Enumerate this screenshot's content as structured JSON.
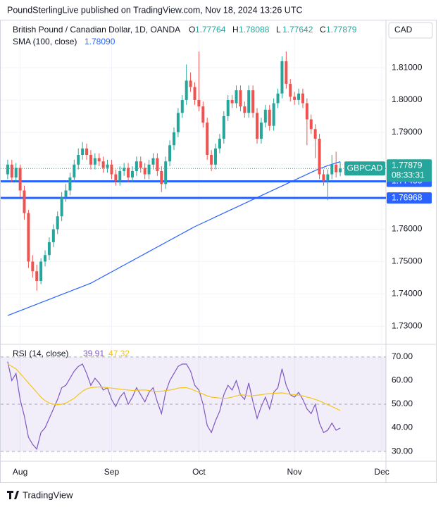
{
  "header": "PoundSterlingLive published on TradingView.com, Nov 18, 2024 13:26 UTC",
  "footer": "TradingView",
  "chart_data": [
    {
      "type": "candlestick",
      "title": "British Pound / Canadian Dollar, 1D, OANDA",
      "ohlc_labels": [
        "O",
        "H",
        "L",
        "C"
      ],
      "currency": "CAD",
      "symbol": "GBPCAD",
      "countdown": "08:33:31",
      "up_color": "#26a69a",
      "down_color": "#ef5350",
      "open": [
        1.777,
        1.78,
        1.776,
        1.779,
        1.772,
        1.765,
        1.75,
        1.747,
        1.744,
        1.75,
        1.752,
        1.756,
        1.76,
        1.764,
        1.77,
        1.772,
        1.776,
        1.78,
        1.783,
        1.785,
        1.783,
        1.78,
        1.782,
        1.781,
        1.779,
        1.78,
        1.777,
        1.775,
        1.778,
        1.779,
        1.776,
        1.778,
        1.781,
        1.779,
        1.777,
        1.78,
        1.782,
        1.778,
        1.774,
        1.781,
        1.786,
        1.79,
        1.796,
        1.8,
        1.806,
        1.804,
        1.8,
        1.798,
        1.793,
        1.783,
        1.78,
        1.785,
        1.788,
        1.795,
        1.8,
        1.799,
        1.803,
        1.798,
        1.796,
        1.803,
        1.796,
        1.788,
        1.793,
        1.797,
        1.792,
        1.799,
        1.802,
        1.812,
        1.805,
        1.801,
        1.8,
        1.802,
        1.799,
        1.794,
        1.791,
        1.788,
        1.777,
        1.775,
        1.777,
        1.78,
        1.77764
      ],
      "high": [
        1.7815,
        1.7815,
        1.7805,
        1.78,
        1.7735,
        1.766,
        1.752,
        1.749,
        1.751,
        1.7535,
        1.7575,
        1.7615,
        1.7655,
        1.7715,
        1.774,
        1.7775,
        1.7815,
        1.785,
        1.787,
        1.7865,
        1.7845,
        1.7835,
        1.7835,
        1.7825,
        1.7815,
        1.7815,
        1.7785,
        1.7795,
        1.7805,
        1.7805,
        1.7795,
        1.7825,
        1.7825,
        1.7805,
        1.7815,
        1.7835,
        1.7835,
        1.7795,
        1.7825,
        1.7875,
        1.7915,
        1.7975,
        1.8015,
        1.811,
        1.8085,
        1.8055,
        1.815,
        1.7995,
        1.7945,
        1.7845,
        1.7865,
        1.7895,
        1.7965,
        1.8015,
        1.8015,
        1.8045,
        1.8045,
        1.7995,
        1.8045,
        1.8045,
        1.7975,
        1.7945,
        1.7985,
        1.7985,
        1.8005,
        1.8035,
        1.8135,
        1.815,
        1.8065,
        1.8025,
        1.8035,
        1.8035,
        1.8005,
        1.7955,
        1.7925,
        1.7895,
        1.7785,
        1.7785,
        1.783,
        1.784,
        1.78088
      ],
      "low": [
        1.7755,
        1.7745,
        1.7745,
        1.77,
        1.763,
        1.748,
        1.745,
        1.741,
        1.743,
        1.7485,
        1.7505,
        1.7545,
        1.7585,
        1.7625,
        1.7685,
        1.7705,
        1.7745,
        1.7785,
        1.7815,
        1.7815,
        1.7785,
        1.7785,
        1.7795,
        1.7775,
        1.7775,
        1.7755,
        1.7735,
        1.7735,
        1.7765,
        1.7745,
        1.7745,
        1.7765,
        1.7775,
        1.7755,
        1.7755,
        1.7785,
        1.7765,
        1.7715,
        1.7725,
        1.7795,
        1.7845,
        1.7885,
        1.7945,
        1.7985,
        1.8025,
        1.7985,
        1.7965,
        1.7915,
        1.7815,
        1.778,
        1.7785,
        1.7835,
        1.7865,
        1.7935,
        1.7975,
        1.7975,
        1.7965,
        1.7945,
        1.7945,
        1.7945,
        1.7865,
        1.7865,
        1.7915,
        1.7905,
        1.7905,
        1.7975,
        1.8005,
        1.8035,
        1.7995,
        1.7985,
        1.7985,
        1.7975,
        1.786,
        1.7895,
        1.782,
        1.7755,
        1.7735,
        1.769,
        1.7755,
        1.776,
        1.77642
      ],
      "close": [
        1.78,
        1.776,
        1.779,
        1.772,
        1.765,
        1.75,
        1.747,
        1.744,
        1.75,
        1.752,
        1.756,
        1.76,
        1.764,
        1.77,
        1.772,
        1.776,
        1.78,
        1.783,
        1.785,
        1.783,
        1.78,
        1.782,
        1.781,
        1.779,
        1.78,
        1.777,
        1.775,
        1.778,
        1.779,
        1.776,
        1.778,
        1.781,
        1.779,
        1.777,
        1.78,
        1.782,
        1.778,
        1.774,
        1.781,
        1.786,
        1.79,
        1.796,
        1.8,
        1.806,
        1.804,
        1.8,
        1.798,
        1.793,
        1.783,
        1.78,
        1.785,
        1.788,
        1.795,
        1.8,
        1.799,
        1.803,
        1.798,
        1.796,
        1.803,
        1.796,
        1.788,
        1.793,
        1.797,
        1.792,
        1.799,
        1.802,
        1.812,
        1.805,
        1.801,
        1.8,
        1.802,
        1.799,
        1.794,
        1.791,
        1.788,
        1.777,
        1.775,
        1.777,
        1.78,
        1.77764,
        1.77879
      ],
      "sma": {
        "name": "SMA (100, close)",
        "color": "#2962ff",
        "current": {
          "value": 1.7809,
          "label": "1.78090"
        },
        "values": [
          1.7333,
          1.7338,
          1.7343,
          1.7348,
          1.7353,
          1.7358,
          1.7363,
          1.7368,
          1.7373,
          1.7378,
          1.7383,
          1.7388,
          1.7393,
          1.7398,
          1.7403,
          1.7408,
          1.7413,
          1.7418,
          1.7423,
          1.7428,
          1.7433,
          1.744,
          1.7447,
          1.7454,
          1.7461,
          1.7468,
          1.7475,
          1.7482,
          1.7489,
          1.7496,
          1.7503,
          1.751,
          1.7517,
          1.7524,
          1.7531,
          1.7538,
          1.7545,
          1.7552,
          1.7559,
          1.7566,
          1.7573,
          1.758,
          1.7587,
          1.7594,
          1.7601,
          1.7608,
          1.7614,
          1.762,
          1.7626,
          1.7632,
          1.7638,
          1.7644,
          1.765,
          1.7656,
          1.7662,
          1.7668,
          1.7674,
          1.768,
          1.7686,
          1.7692,
          1.7698,
          1.7704,
          1.771,
          1.7716,
          1.7722,
          1.7728,
          1.7734,
          1.774,
          1.7746,
          1.7752,
          1.7758,
          1.7764,
          1.777,
          1.7776,
          1.7782,
          1.7787,
          1.7792,
          1.7797,
          1.7801,
          1.7805,
          1.7809
        ]
      },
      "levels": [
        {
          "value": 1.77483,
          "color": "#2962ff"
        },
        {
          "value": 1.76968,
          "color": "#2962ff"
        }
      ],
      "xlim": [
        -1,
        91
      ],
      "ylim": [
        1.7246,
        1.8244
      ],
      "yticks": [
        {
          "value": 1.73,
          "label": "1.73000"
        },
        {
          "value": 1.74,
          "label": "1.74000"
        },
        {
          "value": 1.75,
          "label": "1.75000"
        },
        {
          "value": 1.76,
          "label": "1.76000"
        },
        {
          "value": 1.77,
          "label": "1.77000"
        },
        {
          "value": 1.78,
          "label": "1.78000"
        },
        {
          "value": 1.79,
          "label": "1.79000"
        },
        {
          "value": 1.8,
          "label": "1.80000"
        },
        {
          "value": 1.81,
          "label": "1.81000"
        }
      ],
      "xticks": [
        {
          "value": 3,
          "label": "Aug"
        },
        {
          "value": 25,
          "label": "Sep"
        },
        {
          "value": 46,
          "label": "Oct"
        },
        {
          "value": 69,
          "label": "Nov"
        },
        {
          "value": 90,
          "label": "Dec"
        }
      ]
    },
    {
      "type": "line",
      "title": "RSI (14, close)",
      "series": [
        {
          "color": "#7e57c2",
          "values": [
            68,
            60,
            63,
            52,
            45,
            36,
            33,
            31,
            38,
            40,
            44,
            48,
            52,
            57,
            58,
            61,
            64,
            66,
            67,
            63,
            58,
            61,
            59,
            56,
            57,
            52,
            49,
            53,
            55,
            50,
            53,
            57,
            54,
            51,
            55,
            57,
            51,
            46,
            55,
            60,
            63,
            66,
            67,
            67,
            64,
            58,
            56,
            50,
            41,
            38,
            43,
            47,
            54,
            58,
            56,
            60,
            54,
            52,
            59,
            51,
            44,
            49,
            53,
            48,
            55,
            57,
            65,
            58,
            54,
            53,
            55,
            52,
            48,
            46,
            50,
            42,
            38,
            39,
            42,
            39,
            39.91
          ]
        },
        {
          "color": "#f5c518",
          "values": [
            67,
            66,
            65,
            63,
            61,
            59,
            57,
            55,
            53,
            51.5,
            50.5,
            50,
            49.8,
            50,
            50.5,
            51.5,
            52.5,
            54,
            55.5,
            56.5,
            57,
            57.2,
            57.3,
            57.2,
            57,
            56.8,
            56.6,
            56.4,
            56.2,
            56,
            55.8,
            55.9,
            56,
            56,
            55.8,
            55.5,
            55.4,
            55.5,
            55.8,
            56,
            56.3,
            56.8,
            57,
            57,
            56.5,
            55.8,
            55,
            54.3,
            53.5,
            53,
            52.8,
            52.6,
            52.5,
            52.6,
            53,
            53.5,
            54,
            53.8,
            53.5,
            53.6,
            53.8,
            54,
            54.3,
            54.5,
            54.6,
            54.7,
            54.8,
            54.5,
            54.2,
            54,
            53.8,
            53.5,
            53,
            52.6,
            52,
            51.4,
            50.6,
            49.8,
            49,
            48.2,
            47.32
          ]
        }
      ],
      "xlim": [
        -1,
        91
      ],
      "ylim": [
        26.15,
        75.05
      ],
      "yticks": [
        {
          "value": 30,
          "label": "30.00"
        },
        {
          "value": 40,
          "label": "40.00"
        },
        {
          "value": 50,
          "label": "50.00"
        },
        {
          "value": 60,
          "label": "60.00"
        },
        {
          "value": 70,
          "label": "70.00"
        }
      ]
    }
  ]
}
